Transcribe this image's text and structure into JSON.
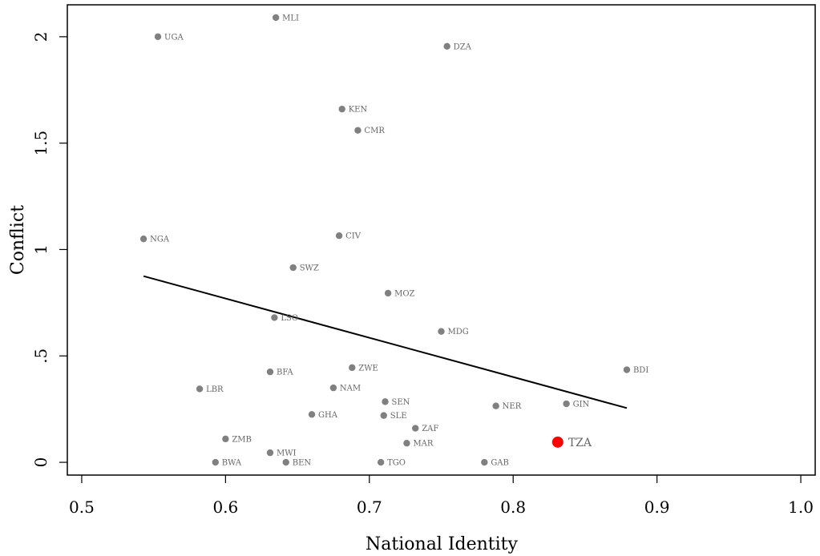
{
  "chart_data": {
    "type": "scatter",
    "xlabel": "National Identity",
    "ylabel": "Conflict",
    "xlim": [
      0.49,
      1.01
    ],
    "ylim": [
      -0.06,
      2.15
    ],
    "x_ticks": [
      {
        "value": 0.5,
        "label": "0.5"
      },
      {
        "value": 0.6,
        "label": "0.6"
      },
      {
        "value": 0.7,
        "label": "0.7"
      },
      {
        "value": 0.8,
        "label": "0.8"
      },
      {
        "value": 0.9,
        "label": "0.9"
      },
      {
        "value": 1.0,
        "label": "1.0"
      }
    ],
    "y_ticks": [
      {
        "value": 0,
        "label": "0"
      },
      {
        "value": 0.5,
        "label": ".5"
      },
      {
        "value": 1,
        "label": "1"
      },
      {
        "value": 1.5,
        "label": "1.5"
      },
      {
        "value": 2,
        "label": "2"
      }
    ],
    "points": [
      {
        "label": "MLI",
        "x": 0.635,
        "y": 2.09
      },
      {
        "label": "UGA",
        "x": 0.553,
        "y": 2.0
      },
      {
        "label": "DZA",
        "x": 0.754,
        "y": 1.955
      },
      {
        "label": "KEN",
        "x": 0.681,
        "y": 1.66
      },
      {
        "label": "CMR",
        "x": 0.692,
        "y": 1.56
      },
      {
        "label": "NGA",
        "x": 0.543,
        "y": 1.05
      },
      {
        "label": "CIV",
        "x": 0.679,
        "y": 1.065
      },
      {
        "label": "SWZ",
        "x": 0.647,
        "y": 0.915
      },
      {
        "label": "MOZ",
        "x": 0.713,
        "y": 0.795
      },
      {
        "label": "LSO",
        "x": 0.634,
        "y": 0.68
      },
      {
        "label": "MDG",
        "x": 0.75,
        "y": 0.615
      },
      {
        "label": "BDI",
        "x": 0.879,
        "y": 0.435
      },
      {
        "label": "ZWE",
        "x": 0.688,
        "y": 0.445
      },
      {
        "label": "BFA",
        "x": 0.631,
        "y": 0.425
      },
      {
        "label": "LBR",
        "x": 0.582,
        "y": 0.345
      },
      {
        "label": "NAM",
        "x": 0.675,
        "y": 0.35
      },
      {
        "label": "SEN",
        "x": 0.711,
        "y": 0.285
      },
      {
        "label": "GIN",
        "x": 0.837,
        "y": 0.275
      },
      {
        "label": "NER",
        "x": 0.788,
        "y": 0.265
      },
      {
        "label": "GHA",
        "x": 0.66,
        "y": 0.225
      },
      {
        "label": "SLE",
        "x": 0.71,
        "y": 0.22
      },
      {
        "label": "ZAF",
        "x": 0.732,
        "y": 0.16
      },
      {
        "label": "ZMB",
        "x": 0.6,
        "y": 0.11
      },
      {
        "label": "MAR",
        "x": 0.726,
        "y": 0.09
      },
      {
        "label": "MWI",
        "x": 0.631,
        "y": 0.045
      },
      {
        "label": "BWA",
        "x": 0.593,
        "y": 0.0
      },
      {
        "label": "BEN",
        "x": 0.642,
        "y": 0.0
      },
      {
        "label": "TGO",
        "x": 0.708,
        "y": 0.0
      },
      {
        "label": "GAB",
        "x": 0.78,
        "y": 0.0
      },
      {
        "label": "TZA",
        "x": 0.831,
        "y": 0.095,
        "highlight": true
      }
    ],
    "fit_line": {
      "x1": 0.543,
      "y1": 0.875,
      "x2": 0.879,
      "y2": 0.255
    },
    "point_color": "#808080",
    "highlight_color": "#ff0000",
    "line_color": "#000000",
    "grid": false
  }
}
